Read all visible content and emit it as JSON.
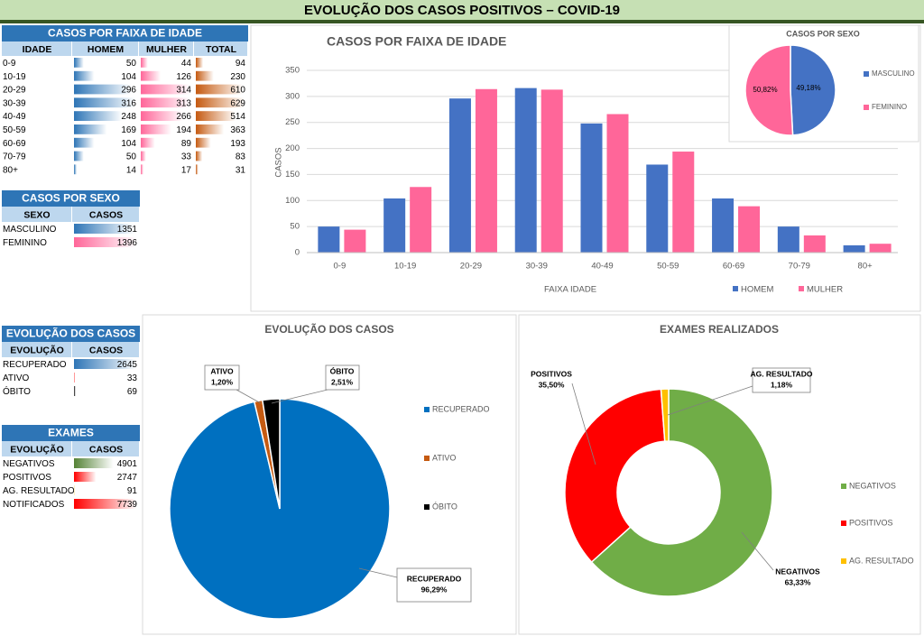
{
  "title": "EVOLUÇÃO DOS  CASOS POSITIVOS – COVID-19",
  "tables": [
    {
      "title": "CASOS POR FAIXA DE IDADE",
      "columns": [
        "IDADE",
        "HOMEM",
        "MULHER",
        "TOTAL"
      ],
      "column_colors": [
        "#2e75b6",
        "#ff6699",
        "#c55a11"
      ],
      "rows": [
        [
          "0-9",
          50,
          44,
          94
        ],
        [
          "10-19",
          104,
          126,
          230
        ],
        [
          "20-29",
          296,
          314,
          610
        ],
        [
          "30-39",
          316,
          313,
          629
        ],
        [
          "40-49",
          248,
          266,
          514
        ],
        [
          "50-59",
          169,
          194,
          363
        ],
        [
          "60-69",
          104,
          89,
          193
        ],
        [
          "70-79",
          50,
          33,
          83
        ],
        [
          "80+",
          14,
          17,
          31
        ]
      ]
    },
    {
      "title": "CASOS POR SEXO",
      "columns": [
        "SEXO",
        "CASOS"
      ],
      "row_colors": [
        "#2e75b6",
        "#ff6699"
      ],
      "rows": [
        [
          "MASCULINO",
          1351
        ],
        [
          "FEMININO",
          1396
        ]
      ]
    },
    {
      "title": "EVOLUÇÃO DOS CASOS",
      "columns": [
        "EVOLUÇÃO",
        "CASOS"
      ],
      "row_colors": [
        "#2e75b6",
        "#ff0000",
        "#000000"
      ],
      "rows": [
        [
          "RECUPERADO",
          2645
        ],
        [
          "ATIVO",
          33
        ],
        [
          "ÓBITO",
          69
        ]
      ]
    },
    {
      "title": "EXAMES",
      "columns": [
        "EVOLUÇÃO",
        "CASOS"
      ],
      "row_colors": [
        "#548235",
        "#ff0000",
        "#ffd966",
        "#ff0000"
      ],
      "rows": [
        [
          "NEGATIVOS",
          4901
        ],
        [
          "POSITIVOS",
          2747
        ],
        [
          "AG. RESULTADO",
          91
        ],
        [
          "NOTIFICADOS",
          7739
        ]
      ]
    }
  ],
  "chart_data": [
    {
      "type": "bar",
      "title": "CASOS POR FAIXA DE IDADE",
      "x_label": "FAIXA IDADE",
      "y_label": "CASOS",
      "categories": [
        "0-9",
        "10-19",
        "20-29",
        "30-39",
        "40-49",
        "50-59",
        "60-69",
        "70-79",
        "80+"
      ],
      "series": [
        {
          "name": "HOMEM",
          "color": "#4472c4",
          "values": [
            50,
            104,
            296,
            316,
            248,
            169,
            104,
            50,
            14
          ]
        },
        {
          "name": "MULHER",
          "color": "#ff6699",
          "values": [
            44,
            126,
            314,
            313,
            266,
            194,
            89,
            33,
            17
          ]
        }
      ],
      "ylim": [
        0,
        350
      ],
      "yticks": [
        0,
        50,
        100,
        150,
        200,
        250,
        300,
        350
      ],
      "grid": true
    },
    {
      "type": "pie",
      "title": "CASOS POR SEXO",
      "categories": [
        "MASCULINO",
        "FEMININO"
      ],
      "values": [
        49.18,
        50.82
      ],
      "value_labels": [
        "49,18%",
        "50,82%"
      ],
      "colors": [
        "#4472c4",
        "#ff6699"
      ]
    },
    {
      "type": "pie",
      "title": "EVOLUÇÃO DOS CASOS",
      "categories": [
        "RECUPERADO",
        "ATIVO",
        "ÓBITO"
      ],
      "values": [
        96.29,
        1.2,
        2.51
      ],
      "value_labels": [
        "96,29%",
        "1,20%",
        "2,51%"
      ],
      "colors": [
        "#0070c0",
        "#c55a11",
        "#000000"
      ]
    },
    {
      "type": "donut",
      "title": "EXAMES REALIZADOS",
      "categories": [
        "NEGATIVOS",
        "POSITIVOS",
        "AG. RESULTADO"
      ],
      "values": [
        63.33,
        35.5,
        1.18
      ],
      "value_labels": [
        "63,33%",
        "35,50%",
        "1,18%"
      ],
      "colors": [
        "#70ad47",
        "#ff0000",
        "#ffc000"
      ]
    }
  ]
}
